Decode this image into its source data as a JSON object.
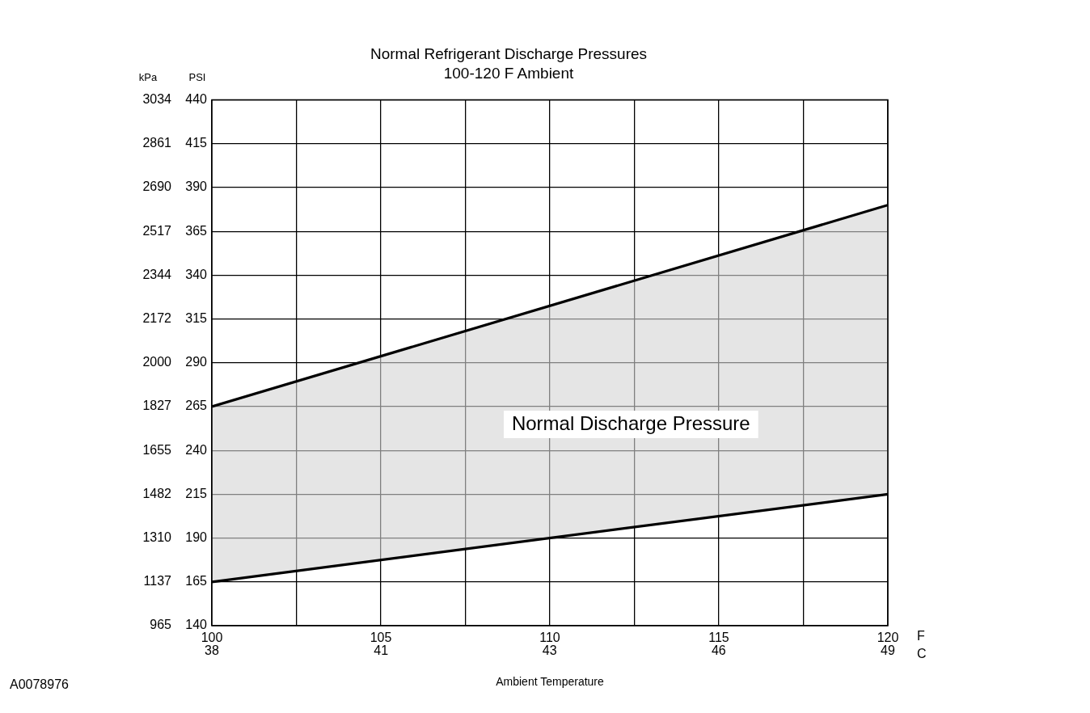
{
  "chart_data": {
    "type": "line",
    "title": "Normal Refrigerant Discharge Pressures",
    "subtitle": "100-120 F Ambient",
    "xlabel": "Ambient Temperature",
    "ylabel": "PSI",
    "y2label": "kPa",
    "xlim": [
      100,
      120
    ],
    "xticks": [
      100,
      {
        "value": 102.5,
        "label": null
      },
      105,
      {
        "value": 107.5,
        "label": null
      },
      110,
      {
        "value": 112.5,
        "label": null
      },
      115,
      {
        "value": 117.5,
        "label": null
      },
      120
    ],
    "x2lim": [
      37.78,
      48.89
    ],
    "x2ticks": [
      {
        "value": 37.78,
        "label": "38"
      },
      {
        "value": 40.56,
        "label": "41"
      },
      {
        "value": 43.33,
        "label": "43"
      },
      {
        "value": 46.11,
        "label": "46"
      },
      {
        "value": 48.89,
        "label": "49"
      }
    ],
    "ylim": [
      140,
      440
    ],
    "yticks": [
      140,
      165,
      190,
      215,
      240,
      265,
      290,
      315,
      340,
      365,
      390,
      415,
      440
    ],
    "y2lim": [
      965,
      3034
    ],
    "y2ticks": [
      965,
      1137,
      1310,
      1482,
      1655,
      1827,
      2000,
      2172,
      2344,
      2517,
      2690,
      2861,
      3034
    ],
    "x": [
      100,
      120
    ],
    "grid": true,
    "legend": false,
    "marker": "none",
    "line_style": "solid",
    "series": [
      {
        "type": "line",
        "color": "#000000",
        "values": [
          165,
          215
        ]
      },
      {
        "type": "area",
        "color": "#d4d4d4",
        "values": [
          265,
          380
        ]
      }
    ],
    "annotations": [
      "F",
      "C",
      "A0078976",
      "Normal Discharge Pressure"
    ]
  }
}
